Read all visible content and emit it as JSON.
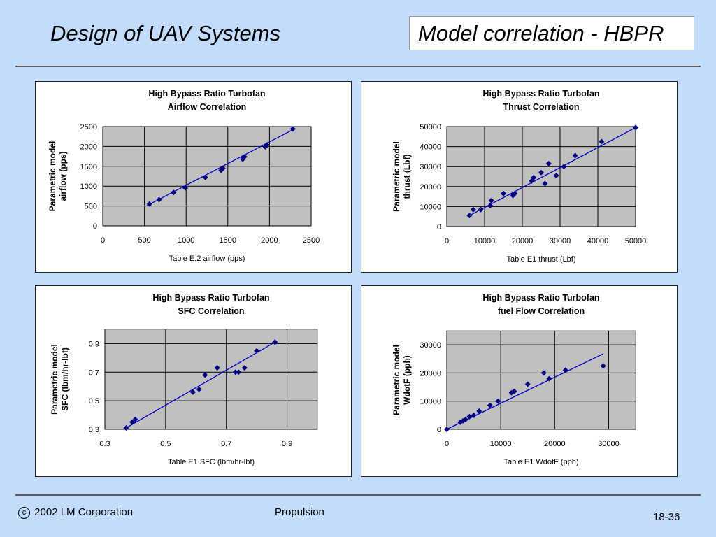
{
  "header": {
    "title": "Design of UAV Systems",
    "topic": "Model correlation - HBPR"
  },
  "footer": {
    "copyright": "2002 LM Corporation",
    "copyright_symbol": "c",
    "subject": "Propulsion",
    "page": "18-36"
  },
  "chart_data": [
    {
      "type": "scatter",
      "title": "High Bypass Ratio Turbofan",
      "subtitle": "Airflow Correlation",
      "xlabel": "Table E.2 airflow (pps)",
      "ylabel_lines": [
        "Parametric model",
        "airflow (pps)"
      ],
      "xlim": [
        0,
        2500
      ],
      "ylim": [
        0,
        2500
      ],
      "xticks": [
        0,
        500,
        1000,
        1500,
        2000,
        2500
      ],
      "yticks": [
        0,
        500,
        1000,
        1500,
        2000,
        2500
      ],
      "xtick_labels": [
        "0",
        "500",
        "1000",
        "1500",
        "2000",
        "2500"
      ],
      "ytick_labels": [
        "0",
        "500",
        "1000",
        "1500",
        "2000",
        "2500"
      ],
      "grid": true,
      "points": [
        [
          560,
          550
        ],
        [
          675,
          660
        ],
        [
          850,
          840
        ],
        [
          990,
          955
        ],
        [
          1230,
          1220
        ],
        [
          1420,
          1400
        ],
        [
          1440,
          1450
        ],
        [
          1680,
          1680
        ],
        [
          1690,
          1720
        ],
        [
          1700,
          1740
        ],
        [
          1950,
          1990
        ],
        [
          1970,
          2040
        ],
        [
          2280,
          2440
        ]
      ],
      "trendline": [
        [
          530,
          510
        ],
        [
          2280,
          2420
        ]
      ]
    },
    {
      "type": "scatter",
      "title": "High Bypass Ratio Turbofan",
      "subtitle": "Thrust Correlation",
      "xlabel": "Table E1 thrust (Lbf)",
      "ylabel_lines": [
        "Parametric model",
        "thrust (Lbf)"
      ],
      "xlim": [
        0,
        50000
      ],
      "ylim": [
        0,
        50000
      ],
      "xticks": [
        0,
        10000,
        20000,
        30000,
        40000,
        50000
      ],
      "yticks": [
        0,
        10000,
        20000,
        30000,
        40000,
        50000
      ],
      "xtick_labels": [
        "0",
        "10000",
        "20000",
        "30000",
        "40000",
        "50000"
      ],
      "ytick_labels": [
        "0",
        "10000",
        "20000",
        "30000",
        "40000",
        "50000"
      ],
      "grid": true,
      "points": [
        [
          6000,
          5500
        ],
        [
          7000,
          8500
        ],
        [
          9000,
          8500
        ],
        [
          11500,
          10500
        ],
        [
          11800,
          13000
        ],
        [
          15000,
          16500
        ],
        [
          17500,
          15500
        ],
        [
          18000,
          16500
        ],
        [
          22500,
          22800
        ],
        [
          23000,
          24500
        ],
        [
          25000,
          27000
        ],
        [
          26000,
          21500
        ],
        [
          27000,
          31500
        ],
        [
          29000,
          25500
        ],
        [
          31000,
          30000
        ],
        [
          34000,
          35500
        ],
        [
          41000,
          42500
        ],
        [
          50000,
          49500
        ]
      ],
      "trendline": [
        [
          5500,
          5000
        ],
        [
          50000,
          49500
        ]
      ]
    },
    {
      "type": "scatter",
      "title": "High Bypass Ratio Turbofan",
      "subtitle": "SFC Correlation",
      "xlabel": "Table E1 SFC (lbm/hr-lbf)",
      "ylabel_lines": [
        "Parametric model",
        "SFC (lbm/hr-lbf)"
      ],
      "xlim": [
        0.3,
        1.0
      ],
      "ylim": [
        0.3,
        1.0
      ],
      "xticks": [
        0.3,
        0.5,
        0.7,
        0.9
      ],
      "yticks": [
        0.3,
        0.5,
        0.7,
        0.9
      ],
      "xtick_labels": [
        "0.3",
        "0.5",
        "0.7",
        "0.9"
      ],
      "ytick_labels": [
        "0.3",
        "0.5",
        "0.7",
        "0.9"
      ],
      "grid": true,
      "points": [
        [
          0.37,
          0.31
        ],
        [
          0.39,
          0.35
        ],
        [
          0.4,
          0.37
        ],
        [
          0.59,
          0.56
        ],
        [
          0.61,
          0.58
        ],
        [
          0.63,
          0.68
        ],
        [
          0.67,
          0.73
        ],
        [
          0.73,
          0.7
        ],
        [
          0.74,
          0.7
        ],
        [
          0.76,
          0.73
        ],
        [
          0.8,
          0.85
        ],
        [
          0.86,
          0.91
        ]
      ],
      "trendline": [
        [
          0.37,
          0.31
        ],
        [
          0.86,
          0.91
        ]
      ]
    },
    {
      "type": "scatter",
      "title": "High Bypass Ratio Turbofan",
      "subtitle": "fuel Flow Correlation",
      "xlabel": "Table E1 WdotF (pph)",
      "ylabel_lines": [
        "Parametric model",
        "WdotF (pph)"
      ],
      "xlim": [
        0,
        35000
      ],
      "ylim": [
        0,
        35000
      ],
      "xticks": [
        0,
        10000,
        20000,
        30000
      ],
      "yticks": [
        0,
        10000,
        20000,
        30000
      ],
      "xtick_labels": [
        "0",
        "10000",
        "20000",
        "30000"
      ],
      "ytick_labels": [
        "0",
        "10000",
        "20000",
        "30000"
      ],
      "grid": true,
      "points": [
        [
          0,
          0
        ],
        [
          2500,
          2500
        ],
        [
          3000,
          3000
        ],
        [
          3500,
          3500
        ],
        [
          4200,
          4500
        ],
        [
          5000,
          5000
        ],
        [
          6000,
          6500
        ],
        [
          8000,
          8500
        ],
        [
          9500,
          10000
        ],
        [
          12000,
          13000
        ],
        [
          12500,
          13500
        ],
        [
          15000,
          16000
        ],
        [
          18000,
          20000
        ],
        [
          19000,
          18000
        ],
        [
          22000,
          21000
        ],
        [
          29000,
          22500
        ]
      ],
      "trendline": [
        [
          0,
          0
        ],
        [
          29000,
          26800
        ]
      ]
    }
  ]
}
